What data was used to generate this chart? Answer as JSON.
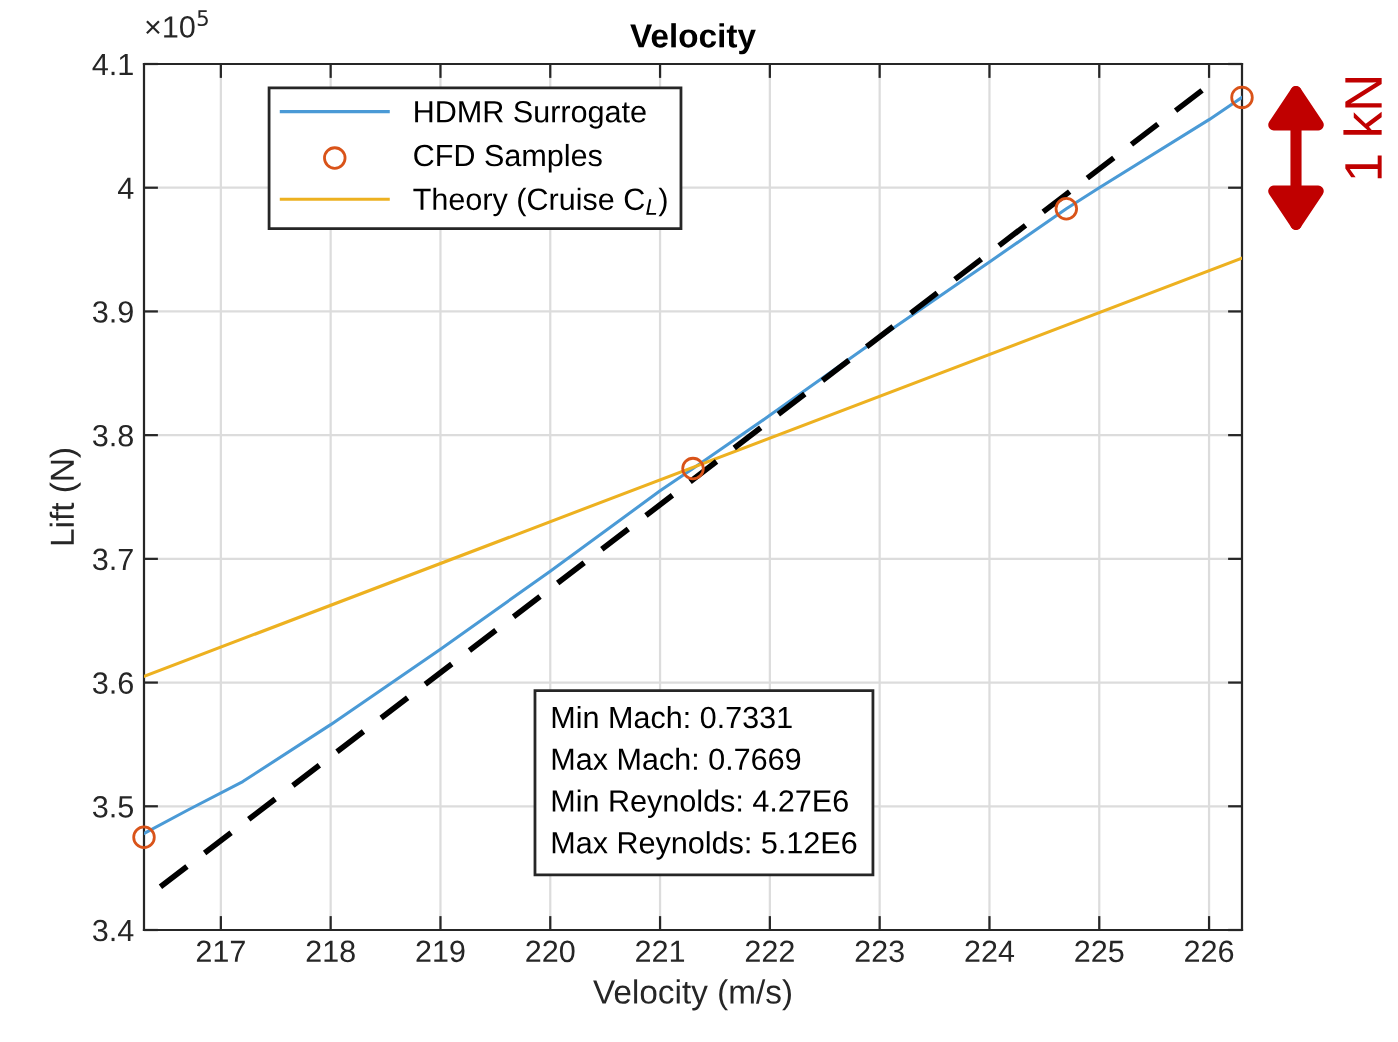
{
  "chart_data": {
    "type": "line",
    "title": "Velocity",
    "xlabel": "Velocity (m/s)",
    "ylabel": "Lift (N)",
    "xlim": [
      216.3,
      226.3
    ],
    "ylim": [
      3.4,
      4.1
    ],
    "xticks": [
      217,
      218,
      219,
      220,
      221,
      222,
      223,
      224,
      225,
      226
    ],
    "yticks": [
      3.4,
      3.5,
      3.6,
      3.7,
      3.8,
      3.9,
      {
        "value": 4.0,
        "label": "4"
      },
      4.1
    ],
    "grid": true,
    "legend": "top left",
    "series": [
      {
        "name": "HDMR Surrogate",
        "color": "#4a9ad6",
        "marker": "none",
        "line_style": "solid",
        "x": [
          216.3,
          216.7,
          217.2,
          218,
          219,
          220,
          221,
          221.3,
          222,
          223,
          224,
          224.7,
          225,
          226,
          226.3
        ],
        "values": [
          3.478,
          3.497,
          3.52,
          3.566,
          3.627,
          3.69,
          3.755,
          3.773,
          3.816,
          3.879,
          3.94,
          3.983,
          4.0,
          4.055,
          4.073
        ]
      },
      {
        "name": "CFD Samples",
        "type": "scatter",
        "color": "#d95319",
        "marker": "circle",
        "x": [
          216.3,
          221.3,
          224.7,
          226.3
        ],
        "values": [
          3.475,
          3.773,
          3.983,
          4.073
        ]
      },
      {
        "name": "Theory (Cruise C$_{L}$)",
        "color": "#edb120",
        "marker": "none",
        "line_style": "solid",
        "x": [
          216.3,
          226.3
        ],
        "values": [
          3.605,
          3.943
        ]
      },
      {
        "color": "#000000",
        "marker": "none",
        "line_style": "dashed",
        "x": [
          216.45,
          226.0
        ],
        "values": [
          3.435,
          4.083
        ]
      }
    ],
    "annotations": [
      "×10$^{5}$",
      "Min Mach: 0.7331\nMax Mach: 0.7669\nMin Reynolds: 4.27E6\nMax Reynolds: 5.12E6",
      "1 kN"
    ]
  }
}
